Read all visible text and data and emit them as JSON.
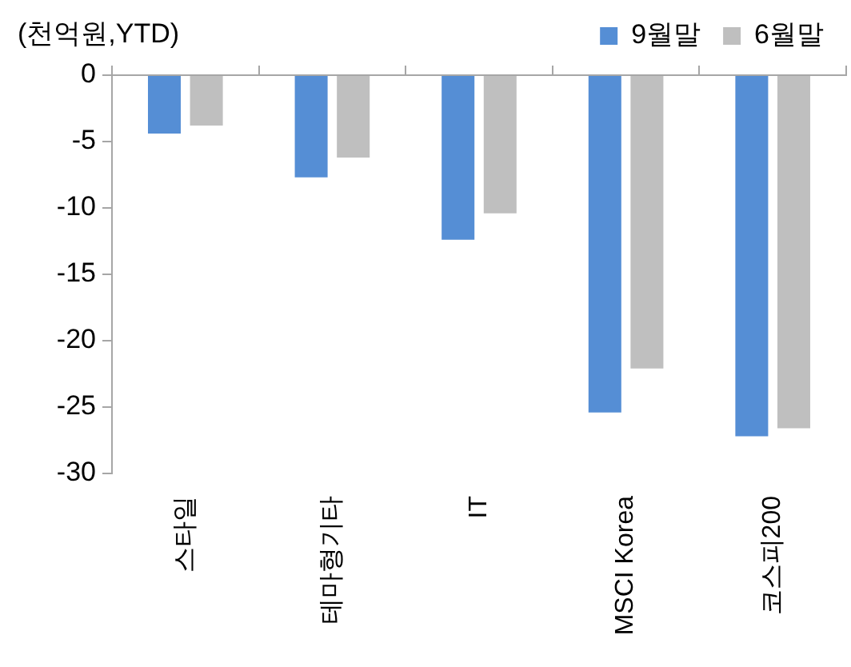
{
  "chart_data": {
    "type": "bar",
    "ylabel": "(천억원,YTD)",
    "categories": [
      "스타일",
      "테마형기타",
      "IT",
      "MSCI Korea",
      "코스피200"
    ],
    "series": [
      {
        "name": "9월말",
        "color": "#558ed5",
        "values": [
          -4.4,
          -7.7,
          -12.4,
          -25.4,
          -27.2
        ]
      },
      {
        "name": "6월말",
        "color": "#bfbfbf",
        "values": [
          -3.8,
          -6.2,
          -10.4,
          -22.1,
          -26.6
        ]
      }
    ],
    "ylim": [
      -30,
      0
    ],
    "yticks": [
      0,
      -5,
      -10,
      -15,
      -20,
      -25,
      -30
    ],
    "legend": "top right"
  }
}
